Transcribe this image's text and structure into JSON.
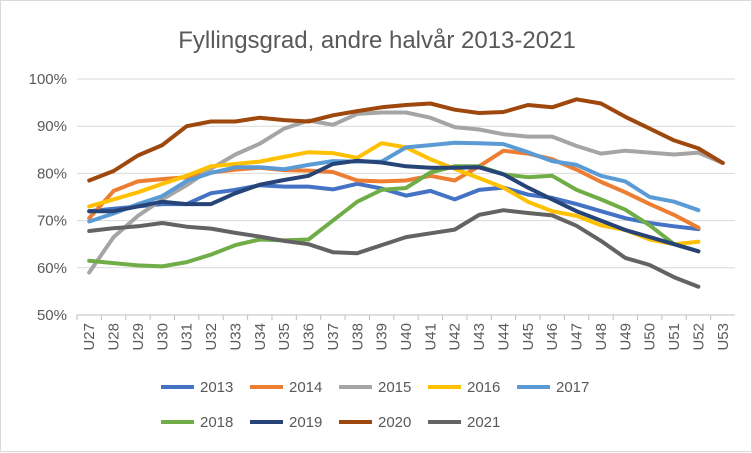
{
  "chart_data": {
    "type": "line",
    "title": "Fyllingsgrad, andre halvår 2013-2021",
    "xlabel": "",
    "ylabel": "",
    "ylim": [
      50,
      100
    ],
    "y_ticks": [
      50,
      60,
      70,
      80,
      90,
      100
    ],
    "y_tick_labels": [
      "50%",
      "60%",
      "70%",
      "80%",
      "90%",
      "100%"
    ],
    "grid": true,
    "legend_position": "bottom",
    "categories": [
      "U27",
      "U28",
      "U29",
      "U30",
      "U31",
      "U32",
      "U33",
      "U34",
      "U35",
      "U36",
      "U37",
      "U38",
      "U39",
      "U40",
      "U41",
      "U42",
      "U43",
      "U44",
      "U45",
      "U46",
      "U47",
      "U48",
      "U49",
      "U50",
      "U51",
      "U52",
      "U53"
    ],
    "series": [
      {
        "name": "2013",
        "color": "#4472c4",
        "values": [
          72,
          72.5,
          73,
          73.5,
          73.5,
          75.8,
          76.5,
          77.5,
          77.2,
          77.2,
          76.6,
          77.8,
          76.8,
          75.3,
          76.3,
          74.5,
          76.5,
          77,
          75.5,
          74.8,
          73.5,
          72,
          70.5,
          69.5,
          68.8,
          68.2,
          null
        ]
      },
      {
        "name": "2014",
        "color": "#ed7d31",
        "values": [
          70.5,
          76.3,
          78.3,
          78.8,
          79.2,
          80.2,
          80.8,
          81.2,
          80.7,
          80.6,
          80.3,
          78.5,
          78.3,
          78.5,
          79.5,
          78.5,
          81.5,
          84.8,
          84.2,
          83,
          80.8,
          78.2,
          76,
          73.5,
          71.2,
          68.5,
          null
        ]
      },
      {
        "name": "2015",
        "color": "#a5a5a5",
        "values": [
          59,
          66.5,
          71,
          74.5,
          77.5,
          81,
          84,
          86.3,
          89.5,
          91.2,
          90.3,
          92.6,
          92.9,
          92.9,
          91.8,
          89.8,
          89.3,
          88.3,
          87.8,
          87.8,
          85.8,
          84.2,
          84.8,
          84.4,
          84,
          84.4,
          82.2
        ]
      },
      {
        "name": "2016",
        "color": "#ffc000",
        "values": [
          73,
          74.5,
          76,
          77.8,
          79.5,
          81.5,
          82,
          82.5,
          83.5,
          84.5,
          84.3,
          83.3,
          86.4,
          85.5,
          83,
          81,
          79,
          77,
          74,
          72,
          71,
          69,
          68,
          66,
          65,
          65.5,
          null
        ]
      },
      {
        "name": "2017",
        "color": "#5b9bd5",
        "values": [
          69.8,
          71.5,
          73.5,
          75.2,
          78.4,
          80.1,
          81.3,
          81.3,
          80.9,
          81.8,
          82.6,
          82.5,
          82.5,
          85.5,
          86,
          86.5,
          86.4,
          86.2,
          84.5,
          82.6,
          81.8,
          79.5,
          78.3,
          75,
          74,
          72.2,
          null
        ]
      },
      {
        "name": "2018",
        "color": "#70ad47",
        "values": [
          61.5,
          61,
          60.5,
          60.3,
          61.2,
          62.8,
          64.8,
          66,
          65.8,
          66,
          70,
          74,
          76.5,
          76.9,
          80.2,
          81.5,
          81.5,
          79.8,
          79.2,
          79.5,
          76.5,
          74.5,
          72.3,
          69,
          65,
          63.5,
          null
        ]
      },
      {
        "name": "2019",
        "color": "#264478",
        "values": [
          72,
          72,
          73,
          74,
          73.5,
          73.5,
          75.8,
          77.6,
          78.6,
          79.5,
          82,
          82.7,
          82.3,
          81.5,
          81.2,
          81.2,
          81.3,
          79.8,
          77,
          74.5,
          72,
          70,
          68,
          66.5,
          65,
          63.5,
          null
        ]
      },
      {
        "name": "2020",
        "color": "#9e480e",
        "values": [
          78.5,
          80.5,
          83.8,
          86,
          90,
          91,
          91,
          91.8,
          91.3,
          91,
          92.3,
          93.2,
          94,
          94.5,
          94.8,
          93.5,
          92.8,
          93,
          94.5,
          94,
          95.7,
          94.8,
          92,
          89.5,
          87,
          85.3,
          82.2
        ]
      },
      {
        "name": "2021",
        "color": "#636363",
        "values": [
          67.8,
          68.4,
          68.8,
          69.5,
          68.7,
          68.3,
          67.4,
          66.6,
          65.7,
          65,
          63.3,
          63.1,
          64.8,
          66.5,
          67.3,
          68.1,
          71.2,
          72.2,
          71.6,
          71.1,
          68.9,
          65.7,
          62.1,
          60.6,
          58,
          56,
          null
        ]
      }
    ]
  }
}
